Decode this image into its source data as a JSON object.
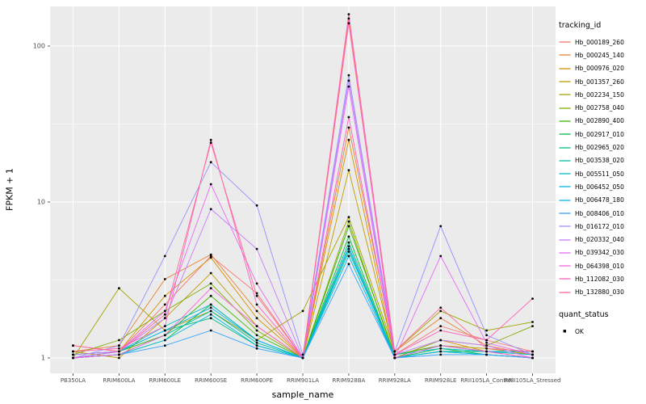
{
  "figure": {
    "ylabel": "FPKM + 1",
    "xlabel": "sample_name"
  },
  "legend": {
    "tracking_title": "tracking_id",
    "quant_title": "quant_status",
    "quant_ok_label": "OK",
    "quant_point_color": "#000000"
  },
  "chart_data": {
    "type": "line",
    "title": "",
    "xlabel": "sample_name",
    "ylabel": "FPKM + 1",
    "y_scale": "log10",
    "ylim": [
      0.8,
      180
    ],
    "y_ticks": [
      1,
      10,
      100
    ],
    "y_tick_labels": [
      "1",
      "10",
      "100"
    ],
    "y_minor_ticks": [
      3.1623,
      31.623
    ],
    "panel_bg": "#EBEBEB",
    "grid_color": "#FFFFFF",
    "tick_text_color": "#4D4D4D",
    "point_color": "#000000",
    "categories": [
      "PB350LA",
      "RRIM600LA",
      "RRIM600LE",
      "RRIM600SE",
      "RRIM600PE",
      "RRIM901LA",
      "RRIM928BA",
      "RRIM928LA",
      "RRIM928LE",
      "RRII105LA_Control",
      "RRII105LA_Stressed"
    ],
    "series": [
      {
        "name": "Hb_000189_260",
        "color": "#F8766D",
        "values": [
          1.2,
          1.1,
          2.2,
          4.5,
          2.6,
          1.0,
          140,
          1.05,
          1.6,
          1.3,
          1.1
        ]
      },
      {
        "name": "Hb_000245_140",
        "color": "#EA8331",
        "values": [
          1.1,
          1.2,
          3.2,
          4.6,
          2.0,
          1.0,
          30,
          1.1,
          1.8,
          1.2,
          1.05
        ]
      },
      {
        "name": "Hb_000976_020",
        "color": "#D89000",
        "values": [
          1.05,
          1.1,
          2.5,
          4.4,
          1.8,
          1.0,
          25,
          1.0,
          1.3,
          1.1,
          1.0
        ]
      },
      {
        "name": "Hb_001357_260",
        "color": "#C09B00",
        "values": [
          1.1,
          1.0,
          1.8,
          3.5,
          1.6,
          1.0,
          16,
          1.05,
          1.2,
          1.15,
          1.05
        ]
      },
      {
        "name": "Hb_002234_150",
        "color": "#A3A500",
        "values": [
          1.0,
          2.8,
          1.5,
          2.0,
          1.3,
          2.0,
          8,
          1.1,
          2.0,
          1.5,
          1.7
        ]
      },
      {
        "name": "Hb_002758_040",
        "color": "#7CAE00",
        "values": [
          1.05,
          1.3,
          2.0,
          3.0,
          1.5,
          1.0,
          7.5,
          1.0,
          1.3,
          1.2,
          1.6
        ]
      },
      {
        "name": "Hb_002890_400",
        "color": "#39B600",
        "values": [
          1.0,
          1.1,
          1.4,
          2.5,
          1.4,
          1.0,
          7.0,
          1.05,
          1.2,
          1.1,
          1.1
        ]
      },
      {
        "name": "Hb_002917_010",
        "color": "#00BB4E",
        "values": [
          1.0,
          1.05,
          1.3,
          2.2,
          1.3,
          1.0,
          6.0,
          1.0,
          1.15,
          1.05,
          1.0
        ]
      },
      {
        "name": "Hb_002965_020",
        "color": "#00BF7D",
        "values": [
          1.0,
          1.1,
          1.5,
          1.8,
          1.2,
          1.0,
          5.5,
          1.0,
          1.1,
          1.1,
          1.05
        ]
      },
      {
        "name": "Hb_003538_020",
        "color": "#00C1A3",
        "values": [
          1.0,
          1.05,
          1.4,
          2.0,
          1.25,
          1.0,
          5.0,
          1.0,
          1.1,
          1.05,
          1.0
        ]
      },
      {
        "name": "Hb_005511_050",
        "color": "#00BFC4",
        "values": [
          1.0,
          1.1,
          1.6,
          2.2,
          1.3,
          1.0,
          4.8,
          1.05,
          1.15,
          1.1,
          1.05
        ]
      },
      {
        "name": "Hb_006452_050",
        "color": "#00BAE0",
        "values": [
          1.0,
          1.05,
          1.3,
          1.9,
          1.2,
          1.0,
          4.5,
          1.0,
          1.1,
          1.05,
          1.0
        ]
      },
      {
        "name": "Hb_006478_180",
        "color": "#00B0F6",
        "values": [
          1.05,
          1.1,
          1.5,
          2.1,
          1.3,
          1.0,
          5.2,
          1.0,
          1.2,
          1.1,
          1.1
        ]
      },
      {
        "name": "Hb_008406_010",
        "color": "#35A2FF",
        "values": [
          1.0,
          1.05,
          1.2,
          1.5,
          1.15,
          1.0,
          4.0,
          1.0,
          1.05,
          1.05,
          1.0
        ]
      },
      {
        "name": "Hb_016172_010",
        "color": "#9590FF",
        "values": [
          1.0,
          1.2,
          4.5,
          18,
          9.5,
          1.05,
          65,
          1.1,
          7.0,
          1.4,
          1.05
        ]
      },
      {
        "name": "Hb_020332_040",
        "color": "#C77CFF",
        "values": [
          1.05,
          1.1,
          1.8,
          9.0,
          5.0,
          1.0,
          60,
          1.05,
          1.3,
          1.2,
          1.0
        ]
      },
      {
        "name": "Hb_039342_030",
        "color": "#E76BF3",
        "values": [
          1.0,
          1.1,
          2.0,
          13,
          3.0,
          1.0,
          55,
          1.0,
          4.5,
          1.25,
          1.05
        ]
      },
      {
        "name": "Hb_064398_010",
        "color": "#FA62DB",
        "values": [
          1.0,
          1.05,
          1.4,
          2.8,
          1.6,
          1.0,
          150,
          1.0,
          1.2,
          1.1,
          1.0
        ]
      },
      {
        "name": "Hb_112082_030",
        "color": "#FF62BC",
        "values": [
          1.1,
          1.15,
          1.6,
          25,
          2.2,
          1.0,
          35,
          1.05,
          1.5,
          1.3,
          2.4
        ]
      },
      {
        "name": "Hb_132880_030",
        "color": "#FF6A98",
        "values": [
          1.2,
          1.1,
          1.9,
          24,
          2.5,
          1.0,
          160,
          1.1,
          2.1,
          1.15,
          1.1
        ]
      }
    ],
    "legend_position": "right",
    "grid": true
  }
}
